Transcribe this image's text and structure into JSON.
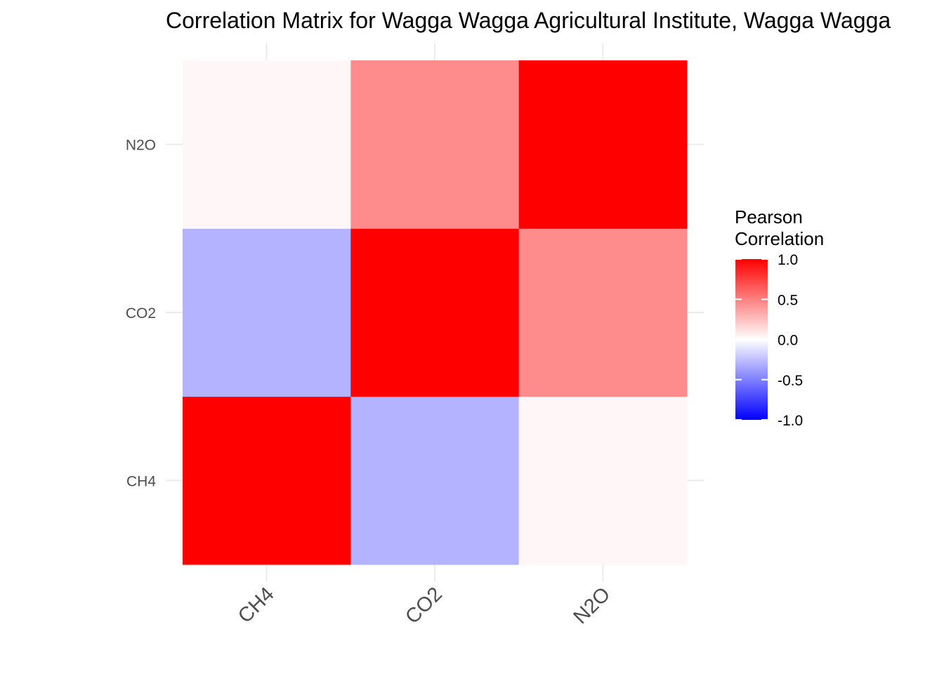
{
  "chart_data": {
    "type": "heatmap",
    "title": "Correlation Matrix for Wagga Wagga Agricultural Institute, Wagga Wagga",
    "xlabel": "",
    "ylabel": "",
    "x_categories": [
      "CH4",
      "CO2",
      "N2O"
    ],
    "y_categories": [
      "CH4",
      "CO2",
      "N2O"
    ],
    "values": [
      [
        1.0,
        -0.3,
        0.03
      ],
      [
        -0.3,
        1.0,
        0.45
      ],
      [
        0.03,
        0.45,
        1.0
      ]
    ],
    "legend": {
      "title_lines": [
        "Pearson",
        "Correlation"
      ],
      "ticks": [
        1.0,
        0.5,
        0.0,
        -0.5,
        -1.0
      ],
      "tick_labels": [
        "1.0",
        "0.5",
        "0.0",
        "-0.5",
        "-1.0"
      ],
      "limits": [
        -1,
        1
      ],
      "placement": "right"
    },
    "colors": {
      "low": "#0000ff",
      "mid": "#ffffff",
      "high": "#ff0000",
      "grid": "#ebebeb",
      "axis_text": "#4d4d4d"
    },
    "grid": true
  }
}
